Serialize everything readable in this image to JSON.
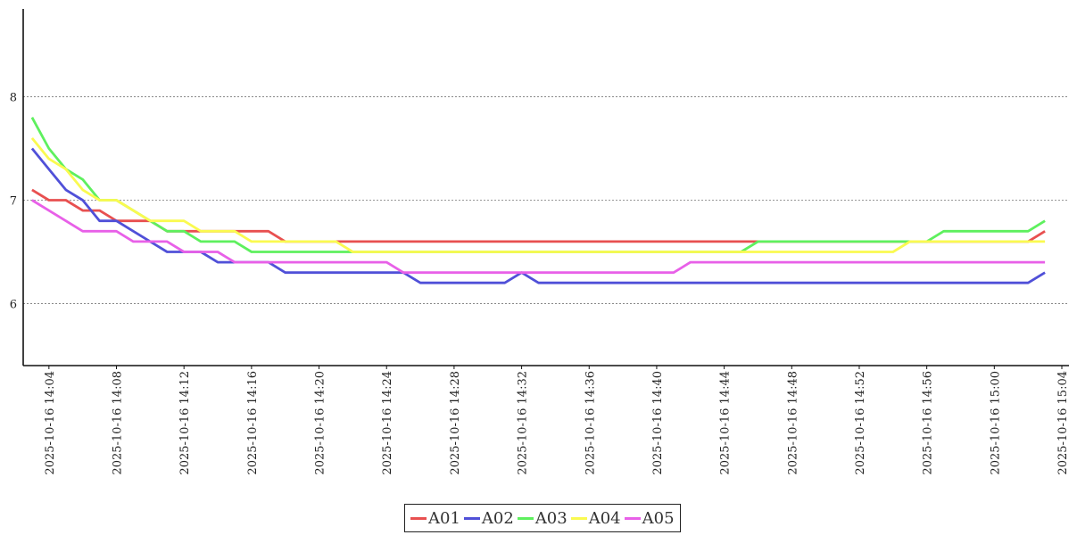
{
  "chart_data": {
    "type": "line",
    "title": "",
    "xlabel": "",
    "ylabel": "",
    "ylim": [
      5.4,
      8.85
    ],
    "yticks": [
      6,
      7,
      8
    ],
    "grid": "horizontal-dashed",
    "legend_position": "bottom-center",
    "x_start": "2025-10-16 14:02",
    "x_end": "2025-10-16 15:04",
    "xticks": [
      "2025-10-16 14:04",
      "2025-10-16 14:08",
      "2025-10-16 14:12",
      "2025-10-16 14:16",
      "2025-10-16 14:20",
      "2025-10-16 14:24",
      "2025-10-16 14:28",
      "2025-10-16 14:32",
      "2025-10-16 14:36",
      "2025-10-16 14:40",
      "2025-10-16 14:44",
      "2025-10-16 14:48",
      "2025-10-16 14:52",
      "2025-10-16 14:56",
      "2025-10-16 15:00",
      "2025-10-16 15:04"
    ],
    "x": [
      "14:03",
      "14:04",
      "14:05",
      "14:06",
      "14:07",
      "14:08",
      "14:09",
      "14:10",
      "14:11",
      "14:12",
      "14:13",
      "14:14",
      "14:15",
      "14:16",
      "14:17",
      "14:18",
      "14:19",
      "14:20",
      "14:21",
      "14:22",
      "14:23",
      "14:24",
      "14:25",
      "14:26",
      "14:27",
      "14:28",
      "14:29",
      "14:30",
      "14:31",
      "14:32",
      "14:33",
      "14:34",
      "14:35",
      "14:36",
      "14:37",
      "14:38",
      "14:39",
      "14:40",
      "14:41",
      "14:42",
      "14:43",
      "14:44",
      "14:45",
      "14:46",
      "14:47",
      "14:48",
      "14:49",
      "14:50",
      "14:51",
      "14:52",
      "14:53",
      "14:54",
      "14:55",
      "14:56",
      "14:57",
      "14:58",
      "14:59",
      "15:00",
      "15:01",
      "15:02",
      "15:03"
    ],
    "series": [
      {
        "name": "A01",
        "color": "#e85050",
        "values": [
          7.1,
          7.0,
          7.0,
          6.9,
          6.9,
          6.8,
          6.8,
          6.8,
          6.7,
          6.7,
          6.7,
          6.7,
          6.7,
          6.7,
          6.7,
          6.6,
          6.6,
          6.6,
          6.6,
          6.6,
          6.6,
          6.6,
          6.6,
          6.6,
          6.6,
          6.6,
          6.6,
          6.6,
          6.6,
          6.6,
          6.6,
          6.6,
          6.6,
          6.6,
          6.6,
          6.6,
          6.6,
          6.6,
          6.6,
          6.6,
          6.6,
          6.6,
          6.6,
          6.6,
          6.6,
          6.6,
          6.6,
          6.6,
          6.6,
          6.6,
          6.6,
          6.6,
          6.6,
          6.6,
          6.6,
          6.6,
          6.6,
          6.6,
          6.6,
          6.6,
          6.7
        ]
      },
      {
        "name": "A02",
        "color": "#5050d8",
        "values": [
          7.5,
          7.3,
          7.1,
          7.0,
          6.8,
          6.8,
          6.7,
          6.6,
          6.5,
          6.5,
          6.5,
          6.4,
          6.4,
          6.4,
          6.4,
          6.3,
          6.3,
          6.3,
          6.3,
          6.3,
          6.3,
          6.3,
          6.3,
          6.2,
          6.2,
          6.2,
          6.2,
          6.2,
          6.2,
          6.3,
          6.2,
          6.2,
          6.2,
          6.2,
          6.2,
          6.2,
          6.2,
          6.2,
          6.2,
          6.2,
          6.2,
          6.2,
          6.2,
          6.2,
          6.2,
          6.2,
          6.2,
          6.2,
          6.2,
          6.2,
          6.2,
          6.2,
          6.2,
          6.2,
          6.2,
          6.2,
          6.2,
          6.2,
          6.2,
          6.2,
          6.3
        ]
      },
      {
        "name": "A03",
        "color": "#5ef05e",
        "values": [
          7.8,
          7.5,
          7.3,
          7.2,
          7.0,
          7.0,
          6.9,
          6.8,
          6.7,
          6.7,
          6.6,
          6.6,
          6.6,
          6.5,
          6.5,
          6.5,
          6.5,
          6.5,
          6.5,
          6.5,
          6.5,
          6.5,
          6.5,
          6.5,
          6.5,
          6.5,
          6.5,
          6.5,
          6.5,
          6.5,
          6.5,
          6.5,
          6.5,
          6.5,
          6.5,
          6.5,
          6.5,
          6.5,
          6.5,
          6.5,
          6.5,
          6.5,
          6.5,
          6.6,
          6.6,
          6.6,
          6.6,
          6.6,
          6.6,
          6.6,
          6.6,
          6.6,
          6.6,
          6.6,
          6.7,
          6.7,
          6.7,
          6.7,
          6.7,
          6.7,
          6.8
        ]
      },
      {
        "name": "A04",
        "color": "#fafa50",
        "values": [
          7.6,
          7.4,
          7.3,
          7.1,
          7.0,
          7.0,
          6.9,
          6.8,
          6.8,
          6.8,
          6.7,
          6.7,
          6.7,
          6.6,
          6.6,
          6.6,
          6.6,
          6.6,
          6.6,
          6.5,
          6.5,
          6.5,
          6.5,
          6.5,
          6.5,
          6.5,
          6.5,
          6.5,
          6.5,
          6.5,
          6.5,
          6.5,
          6.5,
          6.5,
          6.5,
          6.5,
          6.5,
          6.5,
          6.5,
          6.5,
          6.5,
          6.5,
          6.5,
          6.5,
          6.5,
          6.5,
          6.5,
          6.5,
          6.5,
          6.5,
          6.5,
          6.5,
          6.6,
          6.6,
          6.6,
          6.6,
          6.6,
          6.6,
          6.6,
          6.6,
          6.6
        ]
      },
      {
        "name": "A05",
        "color": "#e860e8",
        "values": [
          7.0,
          6.9,
          6.8,
          6.7,
          6.7,
          6.7,
          6.6,
          6.6,
          6.6,
          6.5,
          6.5,
          6.5,
          6.4,
          6.4,
          6.4,
          6.4,
          6.4,
          6.4,
          6.4,
          6.4,
          6.4,
          6.4,
          6.3,
          6.3,
          6.3,
          6.3,
          6.3,
          6.3,
          6.3,
          6.3,
          6.3,
          6.3,
          6.3,
          6.3,
          6.3,
          6.3,
          6.3,
          6.3,
          6.3,
          6.4,
          6.4,
          6.4,
          6.4,
          6.4,
          6.4,
          6.4,
          6.4,
          6.4,
          6.4,
          6.4,
          6.4,
          6.4,
          6.4,
          6.4,
          6.4,
          6.4,
          6.4,
          6.4,
          6.4,
          6.4,
          6.4
        ]
      }
    ]
  }
}
